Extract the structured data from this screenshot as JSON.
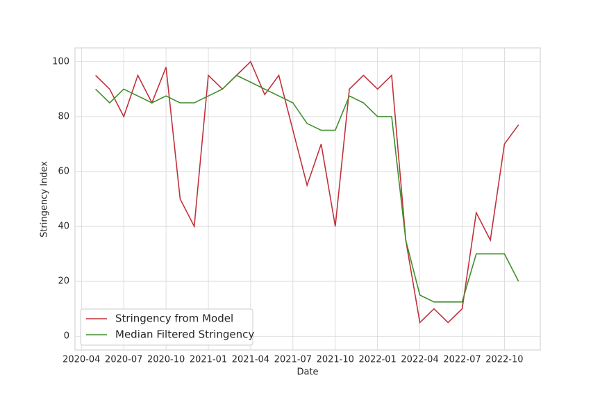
{
  "chart_data": {
    "type": "line",
    "x_label": "Date",
    "y_label": "Stringency Index",
    "x": [
      "2020-05",
      "2020-06",
      "2020-07",
      "2020-08",
      "2020-09",
      "2020-10",
      "2020-11",
      "2020-12",
      "2021-01",
      "2021-02",
      "2021-03",
      "2021-04",
      "2021-05",
      "2021-06",
      "2021-07",
      "2021-08",
      "2021-09",
      "2021-10",
      "2021-11",
      "2021-12",
      "2022-01",
      "2022-02",
      "2022-03",
      "2022-04",
      "2022-05",
      "2022-06",
      "2022-07",
      "2022-08",
      "2022-09",
      "2022-10",
      "2022-11"
    ],
    "series": [
      {
        "name": "Stringency from Model",
        "color": "#c0313b",
        "values": [
          95,
          90,
          80,
          95,
          85,
          98,
          50,
          40,
          95,
          90,
          95,
          100,
          88,
          95,
          75,
          55,
          70,
          40,
          90,
          95,
          90,
          95,
          35,
          5,
          10,
          5,
          10,
          45,
          35,
          70,
          77
        ]
      },
      {
        "name": "Median Filtered Stringency",
        "color": "#3f8f2a",
        "values": [
          90,
          85,
          90,
          87.5,
          85,
          87.5,
          85,
          85,
          87.5,
          90,
          95,
          92.5,
          90,
          87.5,
          85,
          77.5,
          75,
          75,
          87.5,
          85,
          80,
          80,
          35,
          15,
          12.5,
          12.5,
          12.5,
          30,
          30,
          30,
          20
        ]
      }
    ],
    "xlim": [
      "2020-03",
      "2022-12"
    ],
    "xticks": [
      "2020-04",
      "2020-07",
      "2020-10",
      "2021-01",
      "2021-04",
      "2021-07",
      "2021-10",
      "2022-01",
      "2022-04",
      "2022-07",
      "2022-10"
    ],
    "ylim": [
      -5,
      105
    ],
    "yticks": [
      0,
      20,
      40,
      60,
      80,
      100
    ],
    "grid": true,
    "legend": "lower left"
  }
}
